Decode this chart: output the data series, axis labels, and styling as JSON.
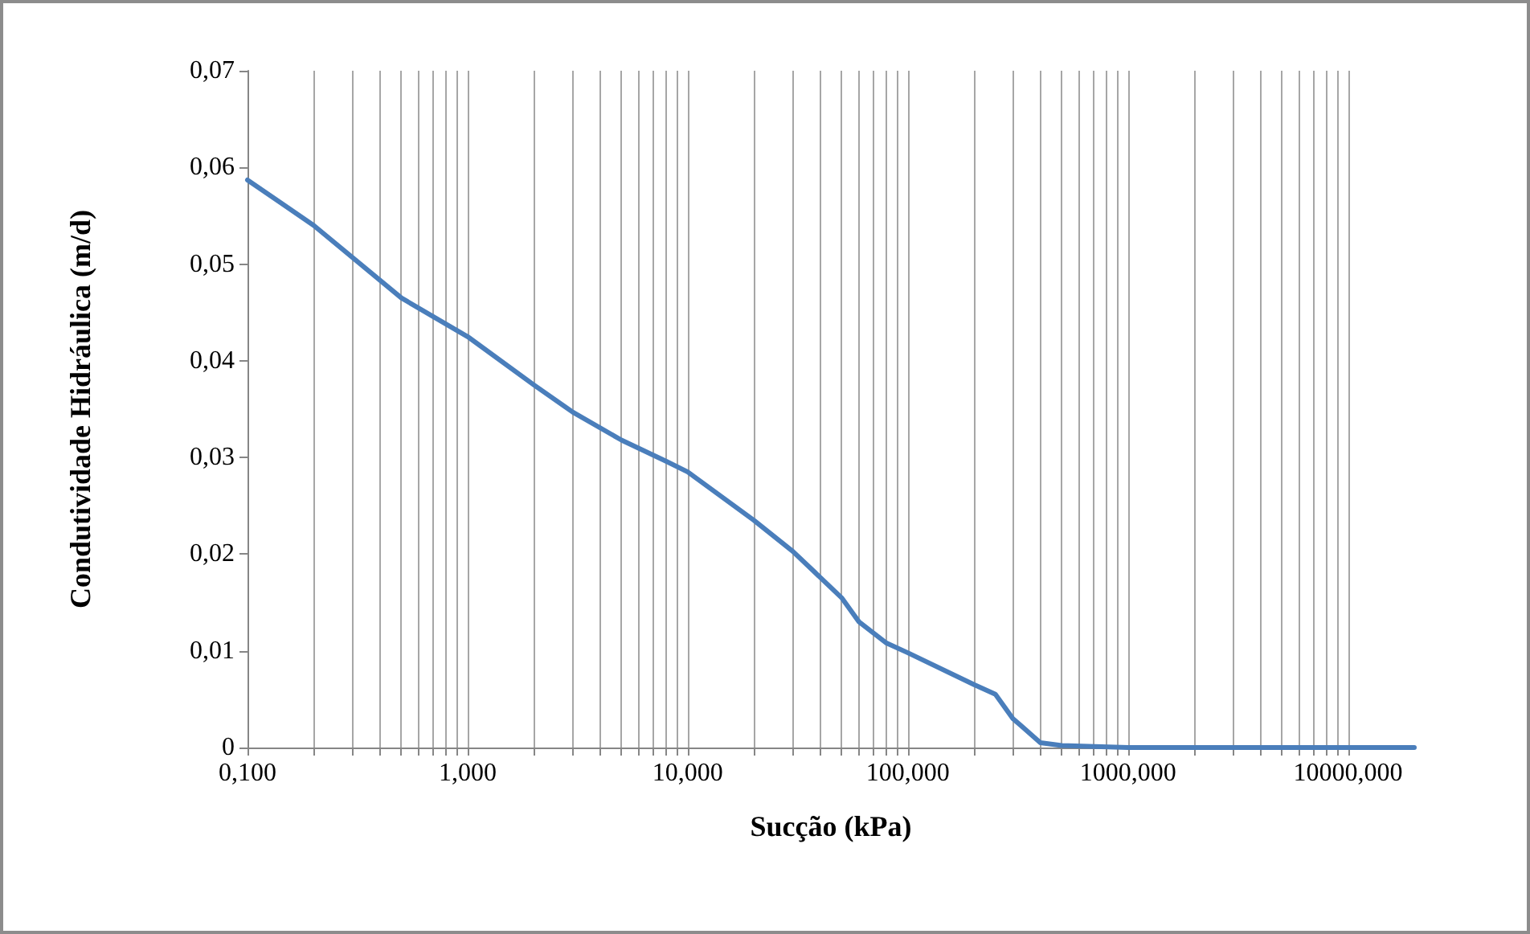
{
  "chart_data": {
    "type": "line",
    "xlabel": "Sucção (kPa)",
    "ylabel": "Condutividade Hidráulica (m/d)",
    "log": "x",
    "grid": "x",
    "marker": "none",
    "line_style": "solid",
    "x": [
      0.1,
      0.2,
      0.5,
      1,
      2,
      3,
      5,
      8,
      10,
      20,
      30,
      50,
      60,
      80,
      100,
      200,
      250,
      300,
      400,
      500,
      1000,
      20000
    ],
    "series": [
      {
        "color": "#4a7ebb",
        "values": [
          0.0587,
          0.054,
          0.0465,
          0.0425,
          0.0375,
          0.0347,
          0.0318,
          0.0296,
          0.0285,
          0.0235,
          0.0203,
          0.0155,
          0.013,
          0.0108,
          0.0098,
          0.0065,
          0.0055,
          0.003,
          0.0005,
          0.0002,
          0,
          0
        ]
      }
    ],
    "xlim": [
      0.1,
      20000
    ],
    "xticks": [
      {
        "value": 0.1,
        "label": "0,100"
      },
      {
        "value": 0.2,
        "label": null
      },
      {
        "value": 0.3,
        "label": null
      },
      {
        "value": 0.4,
        "label": null
      },
      {
        "value": 0.5,
        "label": null
      },
      {
        "value": 0.6,
        "label": null
      },
      {
        "value": 0.7,
        "label": null
      },
      {
        "value": 0.8,
        "label": null
      },
      {
        "value": 0.9,
        "label": null
      },
      {
        "value": 1,
        "label": "1,000"
      },
      {
        "value": 2,
        "label": null
      },
      {
        "value": 3,
        "label": null
      },
      {
        "value": 4,
        "label": null
      },
      {
        "value": 5,
        "label": null
      },
      {
        "value": 6,
        "label": null
      },
      {
        "value": 7,
        "label": null
      },
      {
        "value": 8,
        "label": null
      },
      {
        "value": 9,
        "label": null
      },
      {
        "value": 10,
        "label": "10,000"
      },
      {
        "value": 20,
        "label": null
      },
      {
        "value": 30,
        "label": null
      },
      {
        "value": 40,
        "label": null
      },
      {
        "value": 50,
        "label": null
      },
      {
        "value": 60,
        "label": null
      },
      {
        "value": 70,
        "label": null
      },
      {
        "value": 80,
        "label": null
      },
      {
        "value": 90,
        "label": null
      },
      {
        "value": 100,
        "label": "100,000"
      },
      {
        "value": 200,
        "label": null
      },
      {
        "value": 300,
        "label": null
      },
      {
        "value": 400,
        "label": null
      },
      {
        "value": 500,
        "label": null
      },
      {
        "value": 600,
        "label": null
      },
      {
        "value": 700,
        "label": null
      },
      {
        "value": 800,
        "label": null
      },
      {
        "value": 900,
        "label": null
      },
      {
        "value": 1000,
        "label": "1000,000"
      },
      {
        "value": 2000,
        "label": null
      },
      {
        "value": 3000,
        "label": null
      },
      {
        "value": 4000,
        "label": null
      },
      {
        "value": 5000,
        "label": null
      },
      {
        "value": 6000,
        "label": null
      },
      {
        "value": 7000,
        "label": null
      },
      {
        "value": 8000,
        "label": null
      },
      {
        "value": 9000,
        "label": null
      },
      {
        "value": 10000,
        "label": "10000,000"
      }
    ],
    "ylim": [
      0,
      0.07
    ],
    "yticks": [
      0,
      {
        "value": 0.01,
        "label": "0,01"
      },
      {
        "value": 0.02,
        "label": "0,02"
      },
      {
        "value": 0.03,
        "label": "0,03"
      },
      {
        "value": 0.04,
        "label": "0,04"
      },
      {
        "value": 0.05,
        "label": "0,05"
      },
      {
        "value": 0.06,
        "label": "0,06"
      },
      {
        "value": 0.07,
        "label": "0,07"
      }
    ]
  }
}
